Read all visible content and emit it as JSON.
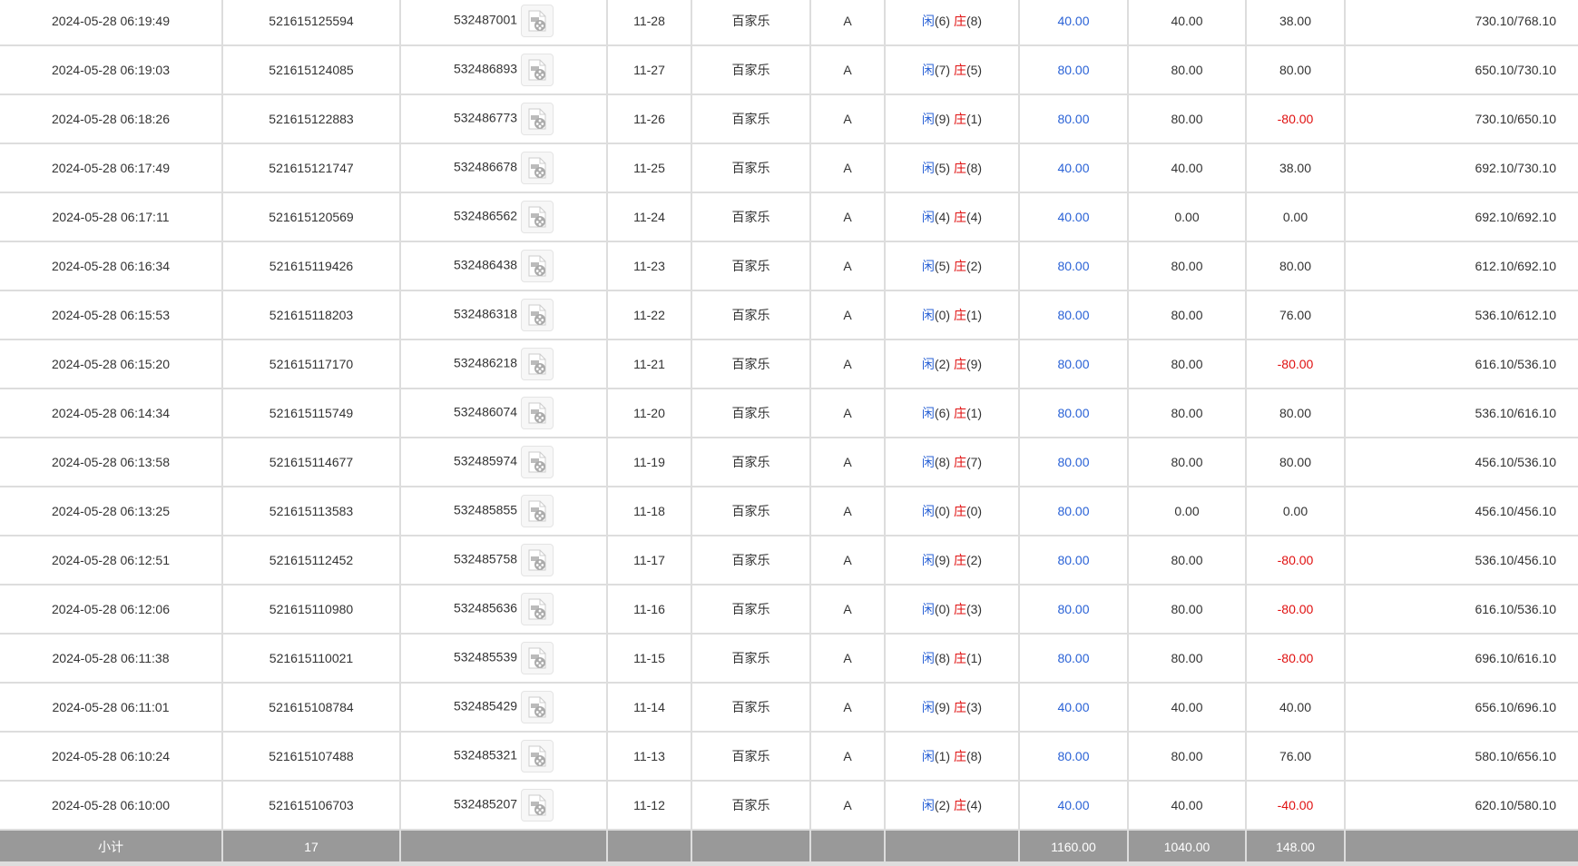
{
  "colors": {
    "blue": "#2a62d6",
    "red": "#e01010",
    "subtotal_bg": "#999999"
  },
  "icon": "video-file-icon",
  "rows": [
    {
      "time": "2024-05-28 06:19:49",
      "order": "521615125594",
      "round": "532487001",
      "shoe": "11-28",
      "game": "百家乐",
      "table": "A",
      "p": "(6)",
      "b": "(8)",
      "bet": "40.00",
      "valid": "40.00",
      "win": "38.00",
      "win_neg": false,
      "balance": "730.10/768.10"
    },
    {
      "time": "2024-05-28 06:19:03",
      "order": "521615124085",
      "round": "532486893",
      "shoe": "11-27",
      "game": "百家乐",
      "table": "A",
      "p": "(7)",
      "b": "(5)",
      "bet": "80.00",
      "valid": "80.00",
      "win": "80.00",
      "win_neg": false,
      "balance": "650.10/730.10"
    },
    {
      "time": "2024-05-28 06:18:26",
      "order": "521615122883",
      "round": "532486773",
      "shoe": "11-26",
      "game": "百家乐",
      "table": "A",
      "p": "(9)",
      "b": "(1)",
      "bet": "80.00",
      "valid": "80.00",
      "win": "-80.00",
      "win_neg": true,
      "balance": "730.10/650.10"
    },
    {
      "time": "2024-05-28 06:17:49",
      "order": "521615121747",
      "round": "532486678",
      "shoe": "11-25",
      "game": "百家乐",
      "table": "A",
      "p": "(5)",
      "b": "(8)",
      "bet": "40.00",
      "valid": "40.00",
      "win": "38.00",
      "win_neg": false,
      "balance": "692.10/730.10"
    },
    {
      "time": "2024-05-28 06:17:11",
      "order": "521615120569",
      "round": "532486562",
      "shoe": "11-24",
      "game": "百家乐",
      "table": "A",
      "p": "(4)",
      "b": "(4)",
      "bet": "40.00",
      "valid": "0.00",
      "win": "0.00",
      "win_neg": false,
      "balance": "692.10/692.10"
    },
    {
      "time": "2024-05-28 06:16:34",
      "order": "521615119426",
      "round": "532486438",
      "shoe": "11-23",
      "game": "百家乐",
      "table": "A",
      "p": "(5)",
      "b": "(2)",
      "bet": "80.00",
      "valid": "80.00",
      "win": "80.00",
      "win_neg": false,
      "balance": "612.10/692.10"
    },
    {
      "time": "2024-05-28 06:15:53",
      "order": "521615118203",
      "round": "532486318",
      "shoe": "11-22",
      "game": "百家乐",
      "table": "A",
      "p": "(0)",
      "b": "(1)",
      "bet": "80.00",
      "valid": "80.00",
      "win": "76.00",
      "win_neg": false,
      "balance": "536.10/612.10"
    },
    {
      "time": "2024-05-28 06:15:20",
      "order": "521615117170",
      "round": "532486218",
      "shoe": "11-21",
      "game": "百家乐",
      "table": "A",
      "p": "(2)",
      "b": "(9)",
      "bet": "80.00",
      "valid": "80.00",
      "win": "-80.00",
      "win_neg": true,
      "balance": "616.10/536.10"
    },
    {
      "time": "2024-05-28 06:14:34",
      "order": "521615115749",
      "round": "532486074",
      "shoe": "11-20",
      "game": "百家乐",
      "table": "A",
      "p": "(6)",
      "b": "(1)",
      "bet": "80.00",
      "valid": "80.00",
      "win": "80.00",
      "win_neg": false,
      "balance": "536.10/616.10"
    },
    {
      "time": "2024-05-28 06:13:58",
      "order": "521615114677",
      "round": "532485974",
      "shoe": "11-19",
      "game": "百家乐",
      "table": "A",
      "p": "(8)",
      "b": "(7)",
      "bet": "80.00",
      "valid": "80.00",
      "win": "80.00",
      "win_neg": false,
      "balance": "456.10/536.10"
    },
    {
      "time": "2024-05-28 06:13:25",
      "order": "521615113583",
      "round": "532485855",
      "shoe": "11-18",
      "game": "百家乐",
      "table": "A",
      "p": "(0)",
      "b": "(0)",
      "bet": "80.00",
      "valid": "0.00",
      "win": "0.00",
      "win_neg": false,
      "balance": "456.10/456.10"
    },
    {
      "time": "2024-05-28 06:12:51",
      "order": "521615112452",
      "round": "532485758",
      "shoe": "11-17",
      "game": "百家乐",
      "table": "A",
      "p": "(9)",
      "b": "(2)",
      "bet": "80.00",
      "valid": "80.00",
      "win": "-80.00",
      "win_neg": true,
      "balance": "536.10/456.10"
    },
    {
      "time": "2024-05-28 06:12:06",
      "order": "521615110980",
      "round": "532485636",
      "shoe": "11-16",
      "game": "百家乐",
      "table": "A",
      "p": "(0)",
      "b": "(3)",
      "bet": "80.00",
      "valid": "80.00",
      "win": "-80.00",
      "win_neg": true,
      "balance": "616.10/536.10"
    },
    {
      "time": "2024-05-28 06:11:38",
      "order": "521615110021",
      "round": "532485539",
      "shoe": "11-15",
      "game": "百家乐",
      "table": "A",
      "p": "(8)",
      "b": "(1)",
      "bet": "80.00",
      "valid": "80.00",
      "win": "-80.00",
      "win_neg": true,
      "balance": "696.10/616.10"
    },
    {
      "time": "2024-05-28 06:11:01",
      "order": "521615108784",
      "round": "532485429",
      "shoe": "11-14",
      "game": "百家乐",
      "table": "A",
      "p": "(9)",
      "b": "(3)",
      "bet": "40.00",
      "valid": "40.00",
      "win": "40.00",
      "win_neg": false,
      "balance": "656.10/696.10"
    },
    {
      "time": "2024-05-28 06:10:24",
      "order": "521615107488",
      "round": "532485321",
      "shoe": "11-13",
      "game": "百家乐",
      "table": "A",
      "p": "(1)",
      "b": "(8)",
      "bet": "80.00",
      "valid": "80.00",
      "win": "76.00",
      "win_neg": false,
      "balance": "580.10/656.10"
    },
    {
      "time": "2024-05-28 06:10:00",
      "order": "521615106703",
      "round": "532485207",
      "shoe": "11-12",
      "game": "百家乐",
      "table": "A",
      "p": "(2)",
      "b": "(4)",
      "bet": "40.00",
      "valid": "40.00",
      "win": "-40.00",
      "win_neg": true,
      "balance": "620.10/580.10"
    }
  ],
  "labels": {
    "player": "闲",
    "banker": "庄"
  },
  "subtotal": {
    "label": "小计",
    "count": "17",
    "bet": "1160.00",
    "valid": "1040.00",
    "win": "148.00"
  }
}
